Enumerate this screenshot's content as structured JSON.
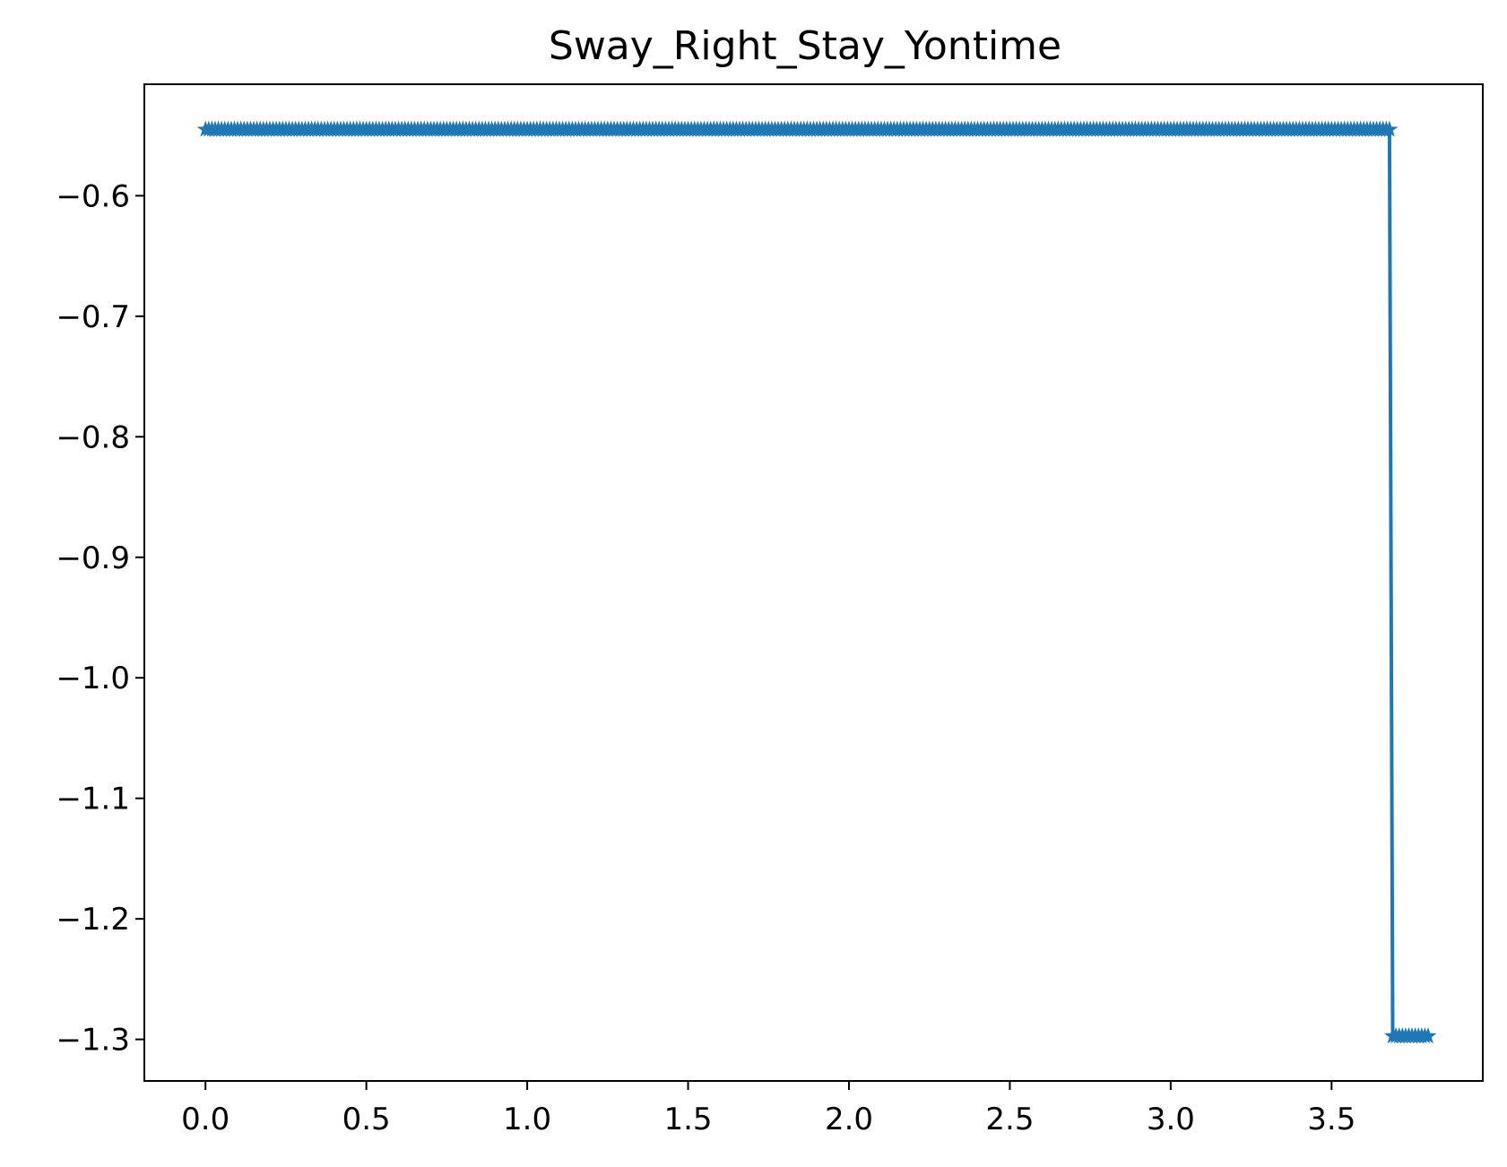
{
  "chart_data": {
    "type": "line",
    "title": "Sway_Right_Stay_Yontime",
    "xlabel": "",
    "ylabel": "",
    "xlim": [
      -0.19,
      3.97
    ],
    "ylim": [
      -1.3345,
      -0.5075
    ],
    "grid": false,
    "legend": "none",
    "x_ticks": [
      0.0,
      0.5,
      1.0,
      1.5,
      2.0,
      2.5,
      3.0,
      3.5
    ],
    "x_tick_labels": [
      "0.0",
      "0.5",
      "1.0",
      "1.5",
      "2.0",
      "2.5",
      "3.0",
      "3.5"
    ],
    "y_ticks": [
      -0.6,
      -0.7,
      -0.8,
      -0.9,
      -1.0,
      -1.1,
      -1.2,
      -1.3
    ],
    "y_tick_labels": [
      "−0.6",
      "−0.7",
      "−0.8",
      "−0.9",
      "−1.0",
      "−1.1",
      "−1.2",
      "−1.3"
    ],
    "marker": "star",
    "color": "#1f77b4",
    "series": [
      {
        "segments": [
          {
            "x_start": 0.0,
            "x_end": 3.68,
            "y": -0.5451
          },
          {
            "x_start": 3.69,
            "x_end": 3.8,
            "y": -1.2973
          }
        ],
        "sample_step": 0.01
      }
    ]
  }
}
